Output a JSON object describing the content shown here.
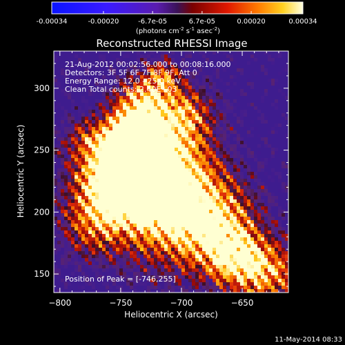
{
  "colorbar": {
    "tick_labels": [
      "-0.00034",
      "-0.00020",
      "-6.7e-05",
      "6.7e-05",
      "0.00020",
      "0.00034"
    ],
    "tick_values": [
      -0.00034,
      -0.0002,
      -6.7e-05,
      6.7e-05,
      0.0002,
      0.00034
    ],
    "range": [
      -0.00034,
      0.00034
    ],
    "unit_main": "(photons cm",
    "unit_exp1": "-2",
    "unit_mid": " s",
    "unit_exp2": "-1",
    "unit_tail": " asec",
    "unit_exp3": "-2",
    "unit_close": ")"
  },
  "overlay": {
    "time_range": "21-Aug-2012 00:02:56.000 to 00:08:16.000",
    "detectors": "Detectors: 3F 5F 6F 7F 8F 9F, Att 0",
    "energy": "Energy Range: 12.0 - 25.0 keV",
    "clean": "Clean     Total counts: 2.40E+03",
    "peak": "Position of Peak = [-746,255]"
  },
  "footer": {
    "timestamp": "11-May-2014 08:33"
  },
  "chart_data": {
    "type": "heatmap",
    "title": "Reconstructed RHESSI Image",
    "xlabel": "Heliocentric X (arcsec)",
    "ylabel": "Heliocentric Y (arcsec)",
    "xlim": [
      -805,
      -612
    ],
    "ylim": [
      135,
      330
    ],
    "x_ticks": [
      -800,
      -750,
      -700,
      -650
    ],
    "y_ticks": [
      150,
      200,
      250,
      300
    ],
    "x_tick_labels": [
      "−800",
      "−750",
      "−700",
      "−650"
    ],
    "y_tick_labels": [
      "150",
      "200",
      "250",
      "300"
    ],
    "peak": [
      -746,
      255
    ],
    "colormap": "RHESSI std_gamma (blue-purple-red-yellow-white)"
  }
}
